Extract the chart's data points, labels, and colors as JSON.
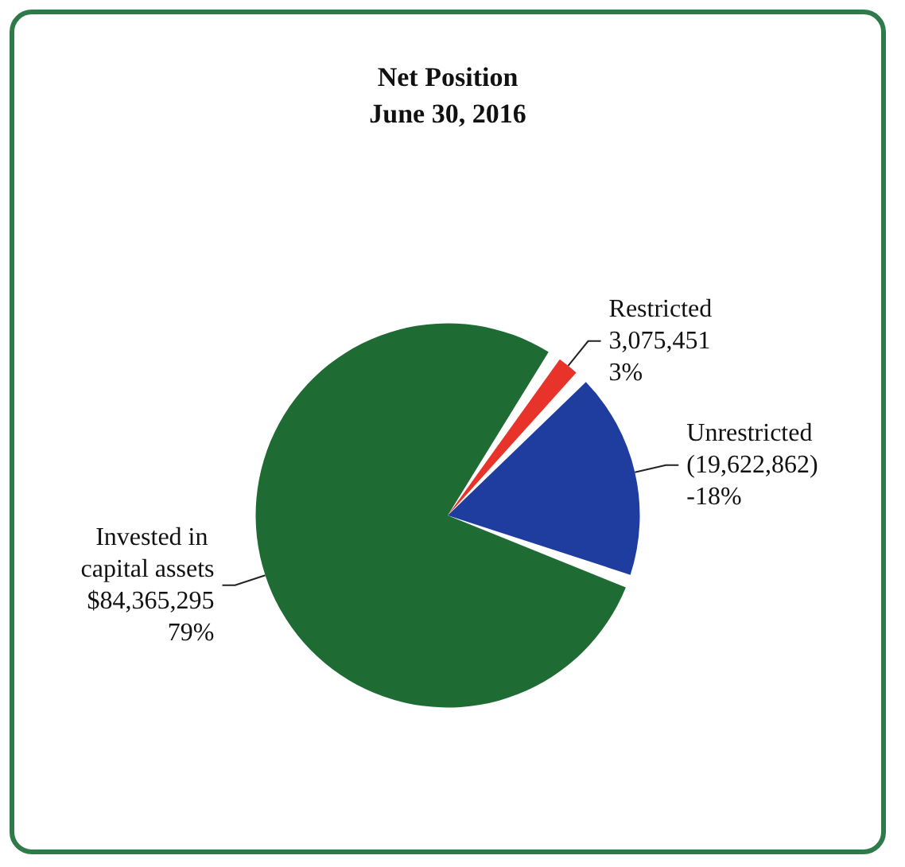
{
  "chart_data": {
    "type": "pie",
    "title": "Net Position",
    "subtitle": "June 30, 2016",
    "categories": [
      "Invested in capital assets",
      "Restricted",
      "Unrestricted"
    ],
    "values": [
      84365295,
      3075451,
      19622862
    ],
    "value_labels": [
      "$84,365,295\n79%",
      "3,075,451\n3%",
      "(19,622,862)\n-18%"
    ],
    "colors": [
      "#1e6b34",
      "#e8332a",
      "#1f3d9e"
    ]
  }
}
